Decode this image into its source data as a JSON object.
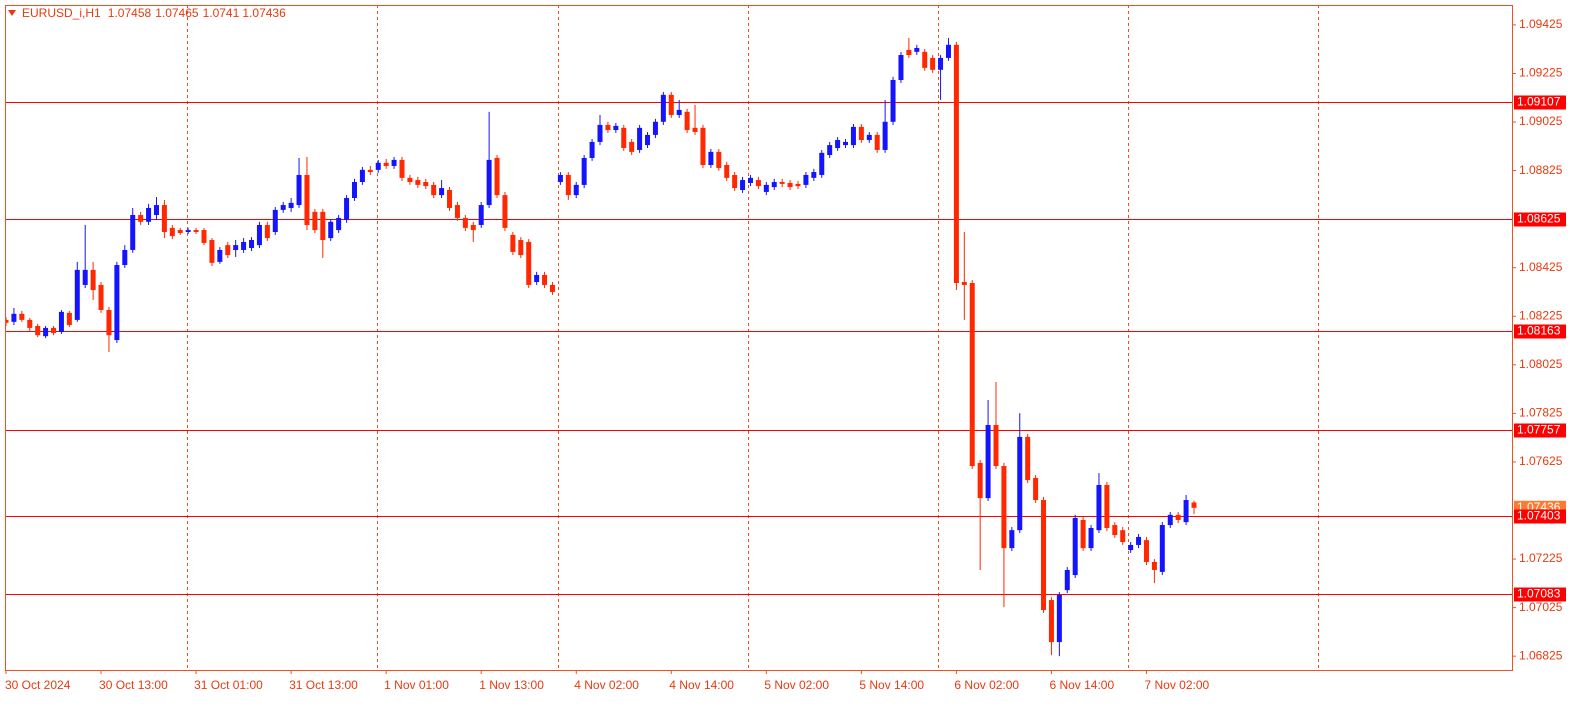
{
  "chart_data": {
    "type": "candlestick",
    "symbol": "EURUSD_i,H1",
    "up_color": "#1414ff",
    "down_color": "#ff2800",
    "level_color": "#ff0000",
    "last_color": "#ff7a30",
    "ylim": [
      1.06768,
      1.09507
    ],
    "yticks": [
      1.09425,
      1.09225,
      1.09025,
      1.08825,
      1.08425,
      1.08225,
      1.08025,
      1.07825,
      1.07625,
      1.07225,
      1.07025,
      1.06825
    ],
    "levels": [
      1.09107,
      1.08625,
      1.08163,
      1.07757,
      1.07403,
      1.07083
    ],
    "categories": [
      "30 Oct 2024",
      null,
      null,
      null,
      null,
      null,
      null,
      null,
      null,
      null,
      null,
      null,
      "30 Oct 13:00",
      null,
      null,
      null,
      null,
      null,
      null,
      null,
      null,
      null,
      null,
      null,
      "31 Oct 01:00",
      null,
      null,
      null,
      null,
      null,
      null,
      null,
      null,
      null,
      null,
      null,
      "31 Oct 13:00",
      null,
      null,
      null,
      null,
      null,
      null,
      null,
      null,
      null,
      null,
      null,
      "1 Nov 01:00",
      null,
      null,
      null,
      null,
      null,
      null,
      null,
      null,
      null,
      null,
      null,
      "1 Nov 13:00",
      null,
      null,
      null,
      null,
      null,
      null,
      null,
      null,
      null,
      null,
      null,
      "4 Nov 02:00",
      null,
      null,
      null,
      null,
      null,
      null,
      null,
      null,
      null,
      null,
      null,
      "4 Nov 14:00",
      null,
      null,
      null,
      null,
      null,
      null,
      null,
      null,
      null,
      null,
      null,
      "5 Nov 02:00",
      null,
      null,
      null,
      null,
      null,
      null,
      null,
      null,
      null,
      null,
      null,
      "5 Nov 14:00",
      null,
      null,
      null,
      null,
      null,
      null,
      null,
      null,
      null,
      null,
      null,
      "6 Nov 02:00",
      null,
      null,
      null,
      null,
      null,
      null,
      null,
      null,
      null,
      null,
      null,
      "6 Nov 14:00",
      null,
      null,
      null,
      null,
      null,
      null,
      null,
      null,
      null,
      null,
      null,
      "7 Nov 02:00",
      null,
      null,
      null,
      null,
      null,
      null
    ],
    "open": [
      1.0821,
      1.08202,
      1.08235,
      1.0821,
      1.08185,
      1.08143,
      1.08177,
      1.0816,
      1.08239,
      1.0821,
      1.08354,
      1.08416,
      1.08354,
      1.08251,
      1.08127,
      1.08436,
      1.08498,
      1.08642,
      1.08614,
      1.08642,
      1.08683,
      1.08589,
      1.0858,
      1.08572,
      1.0858,
      1.0858,
      1.08539,
      1.08449,
      1.08518,
      1.08498,
      1.08498,
      1.08506,
      1.08518,
      1.08601,
      1.08572,
      1.08663,
      1.08671,
      1.08683,
      1.08807,
      1.08655,
      1.08655,
      1.08547,
      1.0858,
      1.08622,
      1.08712,
      1.08778,
      1.08828,
      1.08828,
      1.08857,
      1.08844,
      1.08869,
      1.08795,
      1.08786,
      1.08778,
      1.08766,
      1.08724,
      1.08745,
      1.08683,
      1.0863,
      1.08601,
      1.08601,
      1.08683,
      1.08877,
      1.08724,
      1.0856,
      1.08539,
      1.08531,
      1.08366,
      1.08395,
      1.08354,
      1.08778,
      1.08807,
      1.08724,
      1.08766,
      1.08877,
      1.08943,
      1.09013,
      1.08992,
      1.09001,
      1.08943,
      1.0891,
      1.0893,
      1.08972,
      1.09026,
      1.09137,
      1.09054,
      1.09067,
      1.09001,
      1.09001,
      1.08848,
      1.08902,
      1.08848,
      1.08807,
      1.08745,
      1.08774,
      1.08786,
      1.08737,
      1.08757,
      1.08778,
      1.08774,
      1.0877,
      1.08766,
      1.08795,
      1.08807,
      1.08889,
      1.08918,
      1.0893,
      1.0893,
      1.09005,
      1.08951,
      1.08972,
      1.0891,
      1.09026,
      1.09198,
      1.09322,
      1.09314,
      1.09314,
      1.09289,
      1.0924,
      1.09289,
      1.09343,
      1.08366,
      1.08362,
      1.07621,
      1.07476,
      1.07777,
      1.07608,
      1.0727,
      1.07344,
      1.07728,
      1.07559,
      1.07468,
      1.07056,
      1.06883,
      1.07097,
      1.07159,
      1.07386,
      1.0727,
      1.07344,
      1.0753,
      1.07365,
      1.07344,
      1.07262,
      1.07283,
      1.07303,
      1.07213,
      1.07172,
      1.07365,
      1.07407,
      1.07377,
      1.07458
    ],
    "high": [
      1.08222,
      1.08259,
      1.08247,
      1.08218,
      1.08194,
      1.08185,
      1.08185,
      1.08251,
      1.08247,
      1.08449,
      1.08601,
      1.08449,
      1.08366,
      1.08263,
      1.08449,
      1.08518,
      1.08671,
      1.08655,
      1.08688,
      1.08716,
      1.08704,
      1.08601,
      1.08589,
      1.08589,
      1.08589,
      1.08589,
      1.08547,
      1.0851,
      1.08531,
      1.08539,
      1.08547,
      1.08551,
      1.08614,
      1.08614,
      1.08675,
      1.08696,
      1.08712,
      1.08877,
      1.08881,
      1.08667,
      1.08667,
      1.08626,
      1.08642,
      1.08724,
      1.08791,
      1.0884,
      1.08844,
      1.08869,
      1.08873,
      1.08881,
      1.08881,
      1.08807,
      1.08799,
      1.08791,
      1.08778,
      1.08786,
      1.08757,
      1.08696,
      1.08642,
      1.08614,
      1.08696,
      1.09067,
      1.08889,
      1.08737,
      1.08572,
      1.08551,
      1.08543,
      1.08408,
      1.08408,
      1.08366,
      1.08819,
      1.08819,
      1.08778,
      1.08889,
      1.08955,
      1.09054,
      1.09026,
      1.09021,
      1.09013,
      1.08955,
      1.09013,
      1.08984,
      1.09038,
      1.09149,
      1.09149,
      1.09116,
      1.09079,
      1.09095,
      1.09013,
      1.08914,
      1.08914,
      1.08861,
      1.08819,
      1.08799,
      1.08807,
      1.08799,
      1.08778,
      1.08791,
      1.08791,
      1.08786,
      1.08782,
      1.08819,
      1.08832,
      1.0891,
      1.08943,
      1.08963,
      1.08955,
      1.09017,
      1.09017,
      1.08984,
      1.08984,
      1.09116,
      1.09211,
      1.09314,
      1.09371,
      1.09343,
      1.09326,
      1.09301,
      1.09301,
      1.09371,
      1.09355,
      1.08572,
      1.08374,
      1.07633,
      1.0788,
      1.07954,
      1.07621,
      1.07357,
      1.07826,
      1.0774,
      1.07571,
      1.07481,
      1.07068,
      1.07089,
      1.07192,
      1.07407,
      1.07398,
      1.07365,
      1.07579,
      1.07542,
      1.07377,
      1.07357,
      1.07295,
      1.07328,
      1.07316,
      1.07225,
      1.07377,
      1.07419,
      1.07419,
      1.07489,
      1.07465
    ],
    "low": [
      1.08185,
      1.08189,
      1.08202,
      1.08164,
      1.08139,
      1.08135,
      1.08147,
      1.08152,
      1.08181,
      1.08202,
      1.08341,
      1.08292,
      1.08239,
      1.08078,
      1.08115,
      1.08424,
      1.08486,
      1.08601,
      1.08601,
      1.08622,
      1.08547,
      1.08543,
      1.0856,
      1.08564,
      1.08564,
      1.08518,
      1.08432,
      1.08441,
      1.08465,
      1.08469,
      1.08486,
      1.08494,
      1.08506,
      1.08535,
      1.0856,
      1.08651,
      1.08655,
      1.08671,
      1.0858,
      1.08568,
      1.08465,
      1.08535,
      1.08568,
      1.0861,
      1.087,
      1.08766,
      1.08807,
      1.08816,
      1.08832,
      1.08832,
      1.08782,
      1.08766,
      1.08753,
      1.08749,
      1.08712,
      1.08712,
      1.08659,
      1.08618,
      1.08576,
      1.08531,
      1.08589,
      1.08671,
      1.08712,
      1.08576,
      1.08477,
      1.08465,
      1.08341,
      1.08354,
      1.08341,
      1.08313,
      1.08766,
      1.08704,
      1.08712,
      1.08753,
      1.08865,
      1.0893,
      1.0898,
      1.0898,
      1.08906,
      1.08889,
      1.08898,
      1.08918,
      1.08959,
      1.09013,
      1.09042,
      1.09042,
      1.0898,
      1.08972,
      1.08836,
      1.08836,
      1.08824,
      1.08782,
      1.08741,
      1.08733,
      1.08761,
      1.08749,
      1.08724,
      1.08745,
      1.08757,
      1.08745,
      1.08749,
      1.08753,
      1.08782,
      1.08795,
      1.08877,
      1.08906,
      1.08918,
      1.08918,
      1.08939,
      1.08939,
      1.08898,
      1.08898,
      1.09013,
      1.09186,
      1.09289,
      1.09301,
      1.09236,
      1.09227,
      1.09116,
      1.09277,
      1.08333,
      1.0821,
      1.07596,
      1.0718,
      1.07464,
      1.07596,
      1.07027,
      1.07258,
      1.07332,
      1.07538,
      1.07456,
      1.07003,
      1.06829,
      1.06825,
      1.07085,
      1.07147,
      1.07258,
      1.07258,
      1.07332,
      1.0734,
      1.07312,
      1.07283,
      1.0725,
      1.0727,
      1.072,
      1.07126,
      1.07159,
      1.07353,
      1.07373,
      1.07365,
      1.0741
    ],
    "close": [
      1.08198,
      1.08235,
      1.0821,
      1.08177,
      1.08147,
      1.08177,
      1.08156,
      1.08243,
      1.08189,
      1.08416,
      1.08416,
      1.08333,
      1.08251,
      1.08147,
      1.08436,
      1.08498,
      1.08642,
      1.08614,
      1.08671,
      1.08683,
      1.08572,
      1.08555,
      1.08568,
      1.0858,
      1.08572,
      1.08527,
      1.08445,
      1.08498,
      1.08477,
      1.08518,
      1.08531,
      1.08539,
      1.08601,
      1.08547,
      1.08663,
      1.08683,
      1.08692,
      1.08807,
      1.08601,
      1.0858,
      1.08539,
      1.08614,
      1.0863,
      1.08712,
      1.08778,
      1.08828,
      1.08819,
      1.08857,
      1.08844,
      1.08869,
      1.08795,
      1.08778,
      1.08766,
      1.08761,
      1.08724,
      1.08753,
      1.08671,
      1.0863,
      1.08589,
      1.0858,
      1.08683,
      1.08869,
      1.08724,
      1.08589,
      1.0849,
      1.08477,
      1.08354,
      1.08395,
      1.08354,
      1.08325,
      1.08807,
      1.08724,
      1.08766,
      1.08877,
      1.08943,
      1.09013,
      1.08992,
      1.09009,
      1.08918,
      1.08902,
      1.09001,
      1.08972,
      1.09026,
      1.09137,
      1.09054,
      1.09075,
      1.08992,
      1.08984,
      1.08848,
      1.08902,
      1.08836,
      1.08795,
      1.08753,
      1.08786,
      1.08795,
      1.08761,
      1.08766,
      1.08778,
      1.0877,
      1.08757,
      1.08761,
      1.08807,
      1.08819,
      1.08898,
      1.0893,
      1.08951,
      1.08943,
      1.09005,
      1.08951,
      1.08972,
      1.0891,
      1.09026,
      1.09198,
      1.09301,
      1.09301,
      1.0933,
      1.09248,
      1.0924,
      1.09289,
      1.09343,
      1.08362,
      1.08354,
      1.07608,
      1.07476,
      1.07777,
      1.07608,
      1.0727,
      1.07344,
      1.07728,
      1.0755,
      1.07468,
      1.07015,
      1.06883,
      1.07077,
      1.0718,
      1.07394,
      1.0727,
      1.07353,
      1.0753,
      1.07353,
      1.07324,
      1.07295,
      1.07283,
      1.07316,
      1.07213,
      1.0718,
      1.07365,
      1.07407,
      1.07386,
      1.07468,
      1.07436
    ]
  }
}
